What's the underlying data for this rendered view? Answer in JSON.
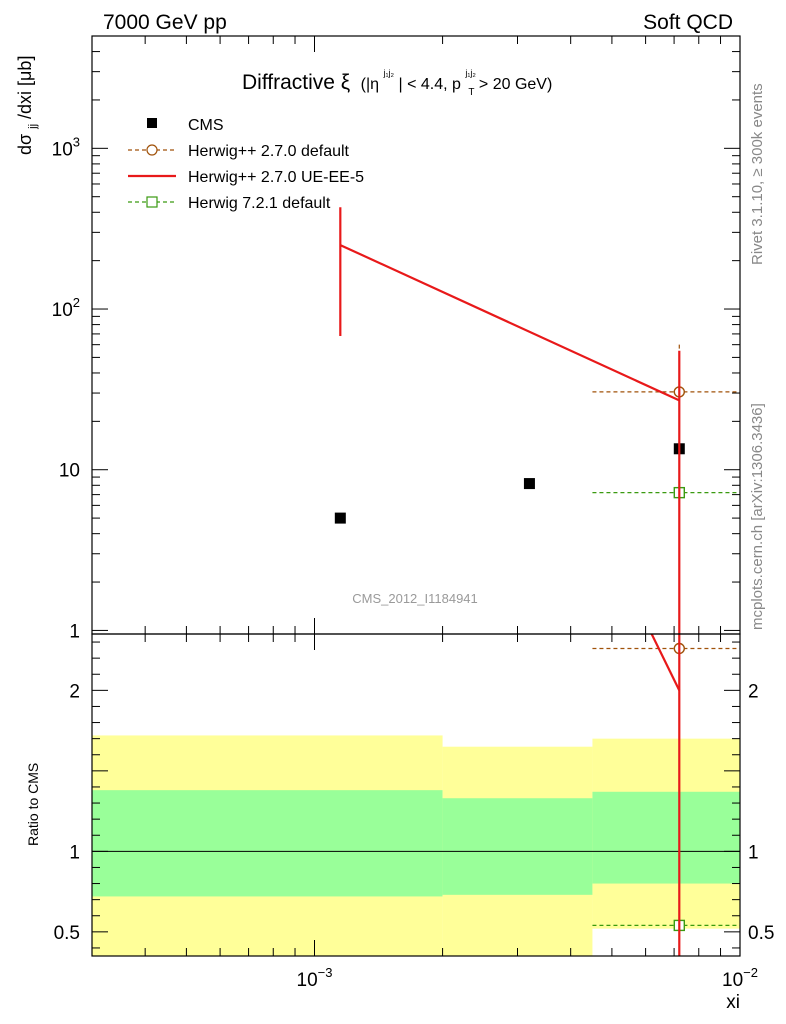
{
  "header": {
    "left": "7000 GeV pp",
    "right": "Soft QCD"
  },
  "side_labels": {
    "rivet": "Rivet 3.1.10, ≥ 300k events",
    "mcplots": "mcplots.cern.ch [arXiv:1306.3436]"
  },
  "chart_data": {
    "type": "scatter",
    "title_main": "Diffractive ξ",
    "title_cut_eta": "(|η",
    "title_cut_eta_sup": "j₁j₂",
    "title_cut_mid": "| < 4.4, p",
    "title_cut_pt_sub": "T",
    "title_cut_pt_sup": "j₁j₂",
    "title_cut_end": " > 20 GeV)",
    "watermark": "CMS_2012_I1184941",
    "xlabel": "xi",
    "ylabel_main": "dσⱼⱼ/dxi [μb]",
    "ylabel_main_d": "dσ",
    "ylabel_main_sub": "jj",
    "ylabel_main_rest": "/dxi [μb]",
    "ylabel_ratio": "Ratio to CMS",
    "x_scale": "log",
    "y_scale_main": "log",
    "xlim": [
      0.0003,
      0.01
    ],
    "ylim_main": [
      0.95,
      5000
    ],
    "ylim_ratio": [
      0.35,
      2.35
    ],
    "x_tick_labels": [
      {
        "base": "10",
        "exp": "−3"
      },
      {
        "base": "10",
        "exp": "−2"
      }
    ],
    "y_tick_labels_main": [
      {
        "base": "1",
        "exp": ""
      },
      {
        "base": "10",
        "exp": ""
      },
      {
        "base": "10",
        "exp": "2"
      },
      {
        "base": "10",
        "exp": "3"
      }
    ],
    "y_tick_labels_ratio": [
      "0.5",
      "1",
      "2"
    ],
    "legend_position": "top-left",
    "grid": false,
    "data": {
      "name": "CMS",
      "color": "#000000",
      "points": [
        {
          "x": 0.00115,
          "y": 5.0,
          "xlo": 0.0003,
          "xhi": 0.002
        },
        {
          "x": 0.0032,
          "y": 8.2,
          "xlo": 0.002,
          "xhi": 0.0045
        },
        {
          "x": 0.0072,
          "y": 13.5,
          "xlo": 0.0045,
          "xhi": 0.01
        }
      ],
      "band_bins": [
        {
          "xlo": 0.0003,
          "xhi": 0.002,
          "inner": [
            0.72,
            1.38
          ],
          "outer": [
            0.35,
            1.72
          ]
        },
        {
          "xlo": 0.002,
          "xhi": 0.0045,
          "inner": [
            0.73,
            1.33
          ],
          "outer": [
            0.35,
            1.65
          ]
        },
        {
          "xlo": 0.0045,
          "xhi": 0.01,
          "inner": [
            0.8,
            1.37
          ],
          "outer": [
            0.52,
            1.7
          ]
        }
      ]
    },
    "series": [
      {
        "name": "Herwig++ 2.7.0 default",
        "color": "#a0520a",
        "style": "dashed",
        "marker": "open-circle",
        "points": [
          {
            "x": 0.0072,
            "y": 30.5,
            "xlo": 0.0045,
            "xhi": 0.01,
            "ylo": 5,
            "yhi": 60
          }
        ],
        "ratio_points": [
          {
            "x": 0.0072,
            "y": 2.26,
            "xlo": 0.0045,
            "xhi": 0.01
          }
        ]
      },
      {
        "name": "Herwig++ 2.7.0 UE-EE-5",
        "color": "#e8191a",
        "style": "solid",
        "marker": "none",
        "points": [
          {
            "x": 0.00115,
            "y": 250,
            "ylo": 68,
            "yhi": 430
          },
          {
            "x": 0.0072,
            "y": 27,
            "ylo": 0.5,
            "yhi": 55
          }
        ],
        "ratio_points": [
          {
            "x": 0.0062,
            "y": 2.35
          },
          {
            "x": 0.0072,
            "y": 2.0
          }
        ]
      },
      {
        "name": "Herwig 7.2.1 default",
        "color": "#3a9a10",
        "style": "dashed",
        "marker": "open-square",
        "points": [
          {
            "x": 0.0072,
            "y": 7.2,
            "xlo": 0.0045,
            "xhi": 0.01,
            "ylo": 3.0,
            "yhi": 11.5
          }
        ],
        "ratio_points": [
          {
            "x": 0.0072,
            "y": 0.54,
            "xlo": 0.0045,
            "xhi": 0.01
          }
        ]
      }
    ]
  }
}
